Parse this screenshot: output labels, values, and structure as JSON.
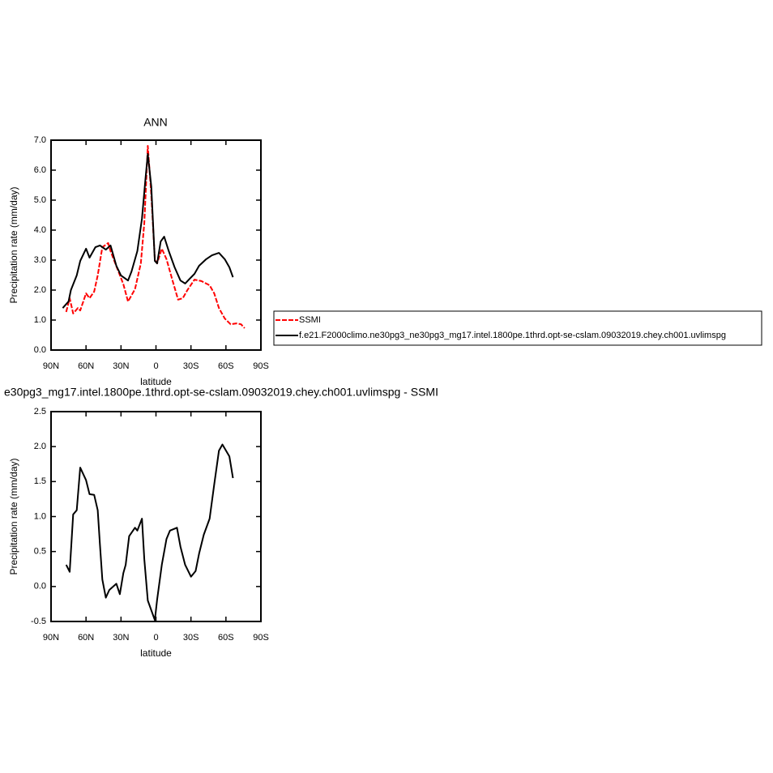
{
  "chart_data": [
    {
      "type": "line",
      "title": "ANN",
      "xlabel": "latitude",
      "ylabel": "Precipitation rate (mm/day)",
      "xlim": [
        90,
        -90
      ],
      "xticks": [
        {
          "value": 90,
          "label": "90N"
        },
        {
          "value": 60,
          "label": "60N"
        },
        {
          "value": 30,
          "label": "30N"
        },
        0,
        {
          "value": -30,
          "label": "30S"
        },
        {
          "value": -60,
          "label": "60S"
        },
        {
          "value": -90,
          "label": "90S"
        }
      ],
      "ylim": [
        0,
        7
      ],
      "yticks": [
        {
          "value": 0,
          "label": "0.0"
        },
        {
          "value": 1,
          "label": "1.0"
        },
        {
          "value": 2,
          "label": "2.0"
        },
        {
          "value": 3,
          "label": "3.0"
        },
        {
          "value": 4,
          "label": "4.0"
        },
        {
          "value": 5,
          "label": "5.0"
        },
        {
          "value": 6,
          "label": "6.0"
        },
        {
          "value": 7,
          "label": "7.0"
        }
      ],
      "series": [
        {
          "name": "SSMI",
          "color": "#ff0000",
          "style": "dashed",
          "x": [
            77,
            74,
            71,
            67,
            65,
            60,
            57,
            53,
            50,
            46,
            41,
            39,
            33,
            28,
            24,
            18,
            13,
            10,
            7,
            4,
            1,
            -1,
            -5,
            -9,
            -14,
            -19,
            -23,
            -27,
            -33,
            -39,
            -46,
            -50,
            -54,
            -59,
            -64,
            -69,
            -73,
            -76
          ],
          "values": [
            1.27,
            1.73,
            1.22,
            1.4,
            1.32,
            1.89,
            1.73,
            1.95,
            2.49,
            3.43,
            3.57,
            3.3,
            2.7,
            2.2,
            1.62,
            2.03,
            2.89,
            4.24,
            6.81,
            5.19,
            3.03,
            2.89,
            3.38,
            3.03,
            2.35,
            1.68,
            1.73,
            2.0,
            2.35,
            2.3,
            2.16,
            1.89,
            1.4,
            1.05,
            0.86,
            0.89,
            0.86,
            0.73
          ]
        },
        {
          "name": "f.e21.F2000climo.ne30pg3_ne30pg3_mg17.intel.1800pe.1thrd.opt-se-cslam.09032019.chey.ch001.uvlimspg",
          "color": "#000000",
          "style": "solid",
          "x": [
            80,
            75,
            73,
            68,
            65,
            60,
            57,
            52,
            48,
            43,
            39,
            34,
            30,
            24,
            21,
            16,
            12,
            9,
            7,
            4,
            1,
            -1,
            -4,
            -7,
            -11,
            -16,
            -21,
            -25,
            -29,
            -33,
            -37,
            -43,
            -48,
            -54,
            -59,
            -63,
            -66
          ],
          "values": [
            1.4,
            1.62,
            2.0,
            2.49,
            2.97,
            3.38,
            3.08,
            3.43,
            3.49,
            3.35,
            3.49,
            2.81,
            2.49,
            2.32,
            2.62,
            3.3,
            4.38,
            5.73,
            6.54,
            5.46,
            2.97,
            2.89,
            3.62,
            3.78,
            3.3,
            2.76,
            2.32,
            2.22,
            2.38,
            2.54,
            2.81,
            3.03,
            3.16,
            3.24,
            3.03,
            2.76,
            2.43
          ]
        }
      ]
    },
    {
      "type": "line",
      "title": "e30pg3_mg17.intel.1800pe.1thrd.opt-se-cslam.09032019.chey.ch001.uvlimspg - SSMI",
      "xlabel": "latitude",
      "ylabel": "Precipitation rate (mm/day)",
      "xlim": [
        90,
        -90
      ],
      "xticks": [
        {
          "value": 90,
          "label": "90N"
        },
        {
          "value": 60,
          "label": "60N"
        },
        {
          "value": 30,
          "label": "30N"
        },
        0,
        {
          "value": -30,
          "label": "30S"
        },
        {
          "value": -60,
          "label": "60S"
        },
        {
          "value": -90,
          "label": "90S"
        }
      ],
      "ylim": [
        -0.5,
        2.5
      ],
      "yticks": [
        -0.5,
        {
          "value": 0,
          "label": "0.0"
        },
        0.5,
        {
          "value": 1,
          "label": "1.0"
        },
        1.5,
        {
          "value": 2,
          "label": "2.0"
        },
        2.5
      ],
      "series": [
        {
          "color": "#000000",
          "style": "solid",
          "x": [
            77,
            74,
            71,
            68,
            65,
            60,
            57,
            53,
            50,
            48,
            46,
            43,
            40,
            34,
            31,
            28,
            26,
            23,
            18,
            16,
            12,
            10,
            7,
            1,
            -1,
            -5,
            -9,
            -12,
            -18,
            -21,
            -25,
            -30,
            -34,
            -37,
            -41,
            -46,
            -50,
            -54,
            -57,
            -63,
            -66
          ],
          "values": [
            0.31,
            0.21,
            1.03,
            1.09,
            1.7,
            1.52,
            1.32,
            1.31,
            1.09,
            0.59,
            0.1,
            -0.16,
            -0.05,
            0.04,
            -0.11,
            0.19,
            0.31,
            0.72,
            0.84,
            0.8,
            0.97,
            0.39,
            -0.2,
            -0.48,
            -0.19,
            0.31,
            0.68,
            0.8,
            0.84,
            0.57,
            0.31,
            0.14,
            0.22,
            0.47,
            0.74,
            0.97,
            1.46,
            1.94,
            2.03,
            1.86,
            1.55
          ]
        }
      ]
    }
  ]
}
